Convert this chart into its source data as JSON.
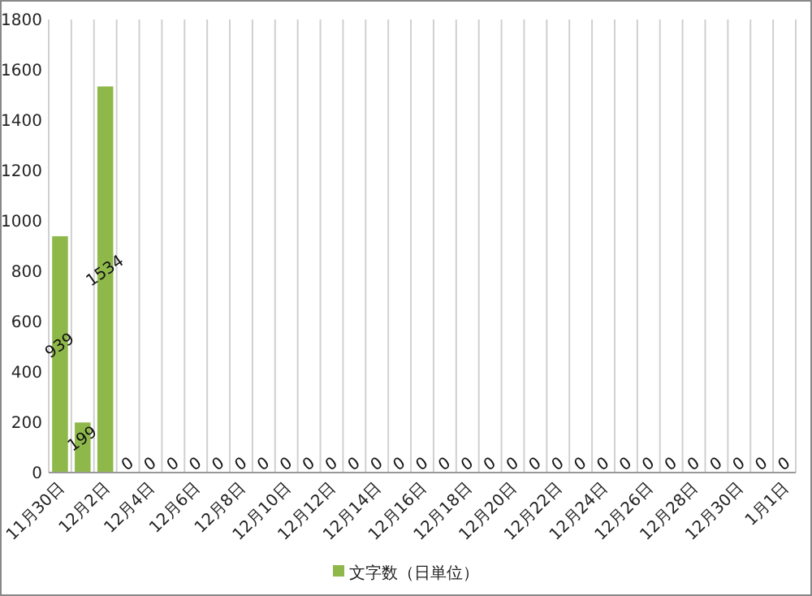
{
  "chart_data": {
    "type": "bar",
    "categories": [
      "11月30日",
      null,
      "12月2日",
      null,
      "12月4日",
      null,
      "12月6日",
      null,
      "12月8日",
      null,
      "12月10日",
      null,
      "12月12日",
      null,
      "12月14日",
      null,
      "12月16日",
      null,
      "12月18日",
      null,
      "12月20日",
      null,
      "12月22日",
      null,
      "12月24日",
      null,
      "12月26日",
      null,
      "12月28日",
      null,
      "12月30日",
      null,
      "1月1日"
    ],
    "series": [
      {
        "name": "文字数（日単位）",
        "color": "#8fb84a",
        "values": [
          939,
          199,
          1534,
          0,
          0,
          0,
          0,
          0,
          0,
          0,
          0,
          0,
          0,
          0,
          0,
          0,
          0,
          0,
          0,
          0,
          0,
          0,
          0,
          0,
          0,
          0,
          0,
          0,
          0,
          0,
          0,
          0,
          0
        ]
      }
    ],
    "ylim": [
      0,
      1800
    ],
    "yticks": [
      0,
      200,
      400,
      600,
      800,
      1000,
      1200,
      1400,
      1600,
      1800
    ],
    "grid": "x",
    "legend": "bottom",
    "data_labels": true
  }
}
